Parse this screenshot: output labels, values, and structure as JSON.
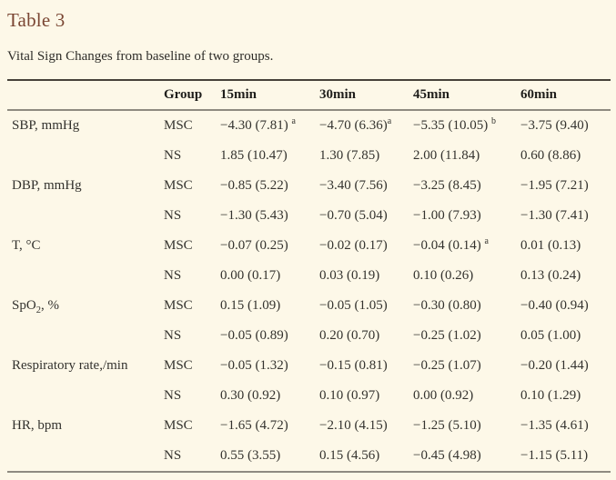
{
  "page": {
    "title": "Table 3",
    "caption": "Vital Sign Changes from baseline of two groups."
  },
  "colors": {
    "background": "#fdf8e8",
    "title_brown": "#7a4633",
    "body_text": "#33322e",
    "rule_dark": "#474239",
    "rule_light": "#8f8b80"
  },
  "table": {
    "headers": [
      "",
      "Group",
      "15min",
      "30min",
      "45min",
      "60min"
    ],
    "measures": [
      {
        "label": {
          "text": "SBP, mmHg"
        },
        "rows": [
          {
            "group": "MSC",
            "cells": [
              {
                "v": "−4.30 (7.81) ",
                "sup": "a"
              },
              {
                "v": "−4.70 (6.36)",
                "sup": "a"
              },
              {
                "v": "−5.35 (10.05) ",
                "sup": "b"
              },
              {
                "v": "−3.75 (9.40)"
              }
            ]
          },
          {
            "group": "NS",
            "cells": [
              {
                "v": "1.85 (10.47)"
              },
              {
                "v": "1.30 (7.85)"
              },
              {
                "v": "2.00 (11.84)"
              },
              {
                "v": "0.60 (8.86)"
              }
            ]
          }
        ]
      },
      {
        "label": {
          "text": "DBP, mmHg"
        },
        "rows": [
          {
            "group": "MSC",
            "cells": [
              {
                "v": "−0.85 (5.22)"
              },
              {
                "v": "−3.40 (7.56)"
              },
              {
                "v": "−3.25 (8.45)"
              },
              {
                "v": "−1.95 (7.21)"
              }
            ]
          },
          {
            "group": "NS",
            "cells": [
              {
                "v": "−1.30 (5.43)"
              },
              {
                "v": "−0.70 (5.04)"
              },
              {
                "v": "−1.00 (7.93)"
              },
              {
                "v": "−1.30 (7.41)"
              }
            ]
          }
        ]
      },
      {
        "label": {
          "text": "T, °C"
        },
        "rows": [
          {
            "group": "MSC",
            "cells": [
              {
                "v": "−0.07 (0.25)"
              },
              {
                "v": "−0.02 (0.17)"
              },
              {
                "v": "−0.04 (0.14) ",
                "sup": "a"
              },
              {
                "v": "0.01 (0.13)"
              }
            ]
          },
          {
            "group": "NS",
            "cells": [
              {
                "v": "0.00 (0.17)"
              },
              {
                "v": "0.03 (0.19)"
              },
              {
                "v": "0.10 (0.26)"
              },
              {
                "v": "0.13 (0.24)"
              }
            ]
          }
        ]
      },
      {
        "label": {
          "text": "SpO",
          "sub": "2",
          "after": ", %"
        },
        "rows": [
          {
            "group": "MSC",
            "cells": [
              {
                "v": "0.15 (1.09)"
              },
              {
                "v": "−0.05 (1.05)"
              },
              {
                "v": "−0.30 (0.80)"
              },
              {
                "v": "−0.40 (0.94)"
              }
            ]
          },
          {
            "group": "NS",
            "cells": [
              {
                "v": "−0.05 (0.89)"
              },
              {
                "v": "0.20 (0.70)"
              },
              {
                "v": "−0.25 (1.02)"
              },
              {
                "v": "0.05 (1.00)"
              }
            ]
          }
        ]
      },
      {
        "label": {
          "text": "Respiratory rate,/min"
        },
        "rows": [
          {
            "group": "MSC",
            "cells": [
              {
                "v": "−0.05 (1.32)"
              },
              {
                "v": "−0.15 (0.81)"
              },
              {
                "v": "−0.25 (1.07)"
              },
              {
                "v": "−0.20 (1.44)"
              }
            ]
          },
          {
            "group": "NS",
            "cells": [
              {
                "v": "0.30 (0.92)"
              },
              {
                "v": "0.10 (0.97)"
              },
              {
                "v": "0.00 (0.92)"
              },
              {
                "v": "0.10 (1.29)"
              }
            ]
          }
        ]
      },
      {
        "label": {
          "text": "HR, bpm"
        },
        "rows": [
          {
            "group": "MSC",
            "cells": [
              {
                "v": "−1.65 (4.72)"
              },
              {
                "v": "−2.10 (4.15)"
              },
              {
                "v": "−1.25 (5.10)"
              },
              {
                "v": "−1.35 (4.61)"
              }
            ]
          },
          {
            "group": "NS",
            "cells": [
              {
                "v": "0.55 (3.55)"
              },
              {
                "v": "0.15 (4.56)"
              },
              {
                "v": "−0.45 (4.98)"
              },
              {
                "v": "−1.15 (5.11)"
              }
            ]
          }
        ]
      }
    ]
  }
}
